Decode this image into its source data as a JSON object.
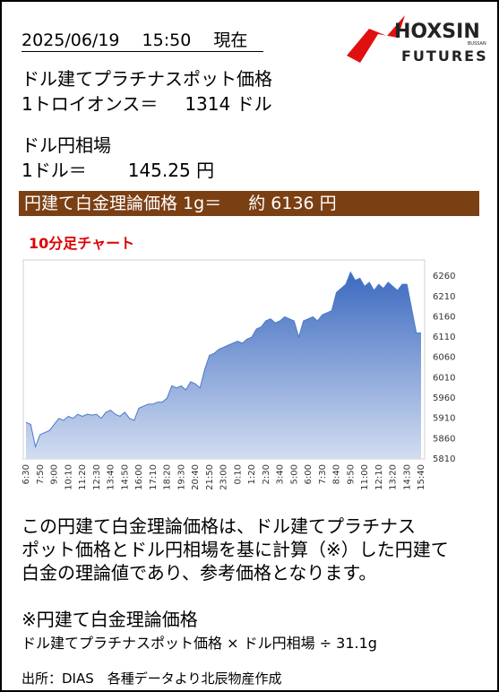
{
  "header": {
    "datetime": "2025/06/19　 15:50　 現在"
  },
  "logo": {
    "name": "HOXSIN",
    "sub": "BUSSAN",
    "line2": "FUTURES"
  },
  "platinum": {
    "title": "ドル建てプラチナスポット価格",
    "label": "1トロイオンス＝",
    "value": "1314",
    "unit": "ドル"
  },
  "fx": {
    "title": "ドル円相場",
    "label": "1ドル＝",
    "value": "145.25",
    "unit": "円"
  },
  "banner": {
    "label": "円建て白金理論価格 1g＝",
    "approx": "約",
    "value": "6136",
    "unit": "円"
  },
  "chart_data": {
    "type": "area",
    "title": "10分足チャート",
    "color": "#4a78c8",
    "categories": [
      "6:30",
      null,
      null,
      "7:50",
      null,
      null,
      "9:00",
      null,
      null,
      "10:10",
      null,
      null,
      "11:20",
      null,
      null,
      "12:30",
      null,
      null,
      "13:40",
      null,
      null,
      "14:50",
      null,
      null,
      "16:00",
      null,
      null,
      "17:10",
      null,
      null,
      "18:20",
      null,
      null,
      "19:30",
      null,
      null,
      "20:40",
      null,
      null,
      "21:50",
      null,
      null,
      "23:00",
      null,
      null,
      "0:10",
      null,
      null,
      "1:20",
      null,
      null,
      "2:30",
      null,
      null,
      "3:40",
      null,
      null,
      "5:00",
      null,
      null,
      "6:00",
      null,
      null,
      "7:30",
      null,
      null,
      "8:40",
      null,
      null,
      "9:50",
      null,
      null,
      "11:00",
      null,
      null,
      "12:10",
      null,
      null,
      "13:20",
      null,
      null,
      "14:30",
      null,
      null,
      "15:40"
    ],
    "values": [
      5900,
      5895,
      5840,
      5870,
      5875,
      5880,
      5895,
      5910,
      5905,
      5915,
      5910,
      5920,
      5915,
      5920,
      5918,
      5920,
      5910,
      5925,
      5930,
      5920,
      5915,
      5925,
      5910,
      5905,
      5935,
      5940,
      5945,
      5945,
      5950,
      5950,
      5960,
      5990,
      5985,
      5990,
      5980,
      6000,
      5995,
      5985,
      6030,
      6065,
      6070,
      6080,
      6085,
      6090,
      6095,
      6100,
      6095,
      6105,
      6110,
      6130,
      6135,
      6150,
      6155,
      6145,
      6150,
      6160,
      6155,
      6150,
      6110,
      6150,
      6155,
      6160,
      6150,
      6165,
      6170,
      6175,
      6220,
      6230,
      6240,
      6270,
      6250,
      6255,
      6235,
      6245,
      6225,
      6240,
      6230,
      6245,
      6235,
      6225,
      6240,
      6240,
      6180,
      6120,
      6120
    ],
    "ylim": [
      5810,
      6300
    ],
    "yticks": [
      5810,
      5860,
      5910,
      5960,
      6010,
      6060,
      6110,
      6160,
      6210,
      6260
    ]
  },
  "note": {
    "lines": [
      "この円建て白金理論価格は、ドル建てプラチナス",
      "ポット価格とドル円相場を基に計算（※）した円建て",
      "白金の理論値であり、参考価格となります。"
    ],
    "formula_title": "※円建て白金理論価格",
    "formula": "ドル建てプラチナスポット価格 × ドル円相場 ÷ 31.1g"
  },
  "source": "出所：DIAS　各種データより北辰物産作成"
}
